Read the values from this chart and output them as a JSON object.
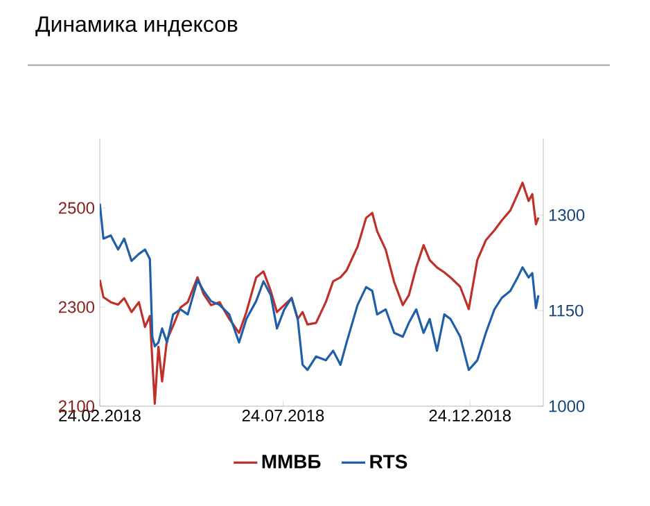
{
  "chart_data": {
    "type": "line",
    "title": "Динамика индексов",
    "xlim": [
      "2018-02-24",
      "2019-02-22"
    ],
    "xticks": [
      {
        "value": "2018-02-24",
        "label": "24.02.2018"
      },
      {
        "value": "2018-07-24",
        "label": "24.07.2018"
      },
      {
        "value": "2018-12-24",
        "label": "24.12.2018"
      }
    ],
    "ylim": [
      2100,
      2640
    ],
    "yticks": [
      2100,
      2300,
      2500
    ],
    "y2lim": [
      1000,
      1420
    ],
    "y2ticks": [
      1000,
      1150,
      1300
    ],
    "legend": "bottom",
    "series": [
      {
        "name": "ММВБ",
        "color": "#c0302a",
        "x": [
          "2018-02-24",
          "2018-02-27",
          "2018-03-05",
          "2018-03-11",
          "2018-03-16",
          "2018-03-22",
          "2018-03-28",
          "2018-04-02",
          "2018-04-06",
          "2018-04-08",
          "2018-04-10",
          "2018-04-13",
          "2018-04-16",
          "2018-04-20",
          "2018-04-25",
          "2018-05-01",
          "2018-05-07",
          "2018-05-15",
          "2018-05-20",
          "2018-05-26",
          "2018-06-02",
          "2018-06-10",
          "2018-06-18",
          "2018-06-24",
          "2018-07-02",
          "2018-07-08",
          "2018-07-14",
          "2018-07-19",
          "2018-07-25",
          "2018-07-31",
          "2018-08-05",
          "2018-08-09",
          "2018-08-13",
          "2018-08-20",
          "2018-08-28",
          "2018-09-03",
          "2018-09-09",
          "2018-09-14",
          "2018-09-23",
          "2018-09-30",
          "2018-10-05",
          "2018-10-09",
          "2018-10-16",
          "2018-10-23",
          "2018-10-30",
          "2018-11-04",
          "2018-11-10",
          "2018-11-16",
          "2018-11-21",
          "2018-11-27",
          "2018-12-03",
          "2018-12-08",
          "2018-12-16",
          "2018-12-23",
          "2018-12-30",
          "2019-01-06",
          "2019-01-13",
          "2019-01-19",
          "2019-01-26",
          "2019-02-01",
          "2019-02-05",
          "2019-02-10",
          "2019-02-13",
          "2019-02-16",
          "2019-02-18"
        ],
        "values": [
          2355,
          2320,
          2310,
          2305,
          2318,
          2290,
          2310,
          2260,
          2282,
          2192,
          2105,
          2220,
          2150,
          2234,
          2262,
          2299,
          2310,
          2360,
          2326,
          2304,
          2310,
          2276,
          2248,
          2290,
          2360,
          2372,
          2332,
          2290,
          2304,
          2318,
          2276,
          2290,
          2265,
          2268,
          2310,
          2352,
          2360,
          2374,
          2422,
          2480,
          2490,
          2453,
          2416,
          2350,
          2304,
          2324,
          2380,
          2425,
          2395,
          2380,
          2370,
          2360,
          2341,
          2296,
          2395,
          2435,
          2455,
          2475,
          2495,
          2528,
          2551,
          2514,
          2528,
          2467,
          2481
        ]
      },
      {
        "name": "RTS",
        "color": "#1f5fa8",
        "axis": "y2",
        "x": [
          "2018-02-24",
          "2018-02-27",
          "2018-03-05",
          "2018-03-11",
          "2018-03-16",
          "2018-03-22",
          "2018-03-28",
          "2018-04-02",
          "2018-04-06",
          "2018-04-08",
          "2018-04-10",
          "2018-04-13",
          "2018-04-16",
          "2018-04-20",
          "2018-04-25",
          "2018-05-01",
          "2018-05-07",
          "2018-05-15",
          "2018-05-20",
          "2018-05-26",
          "2018-06-02",
          "2018-06-10",
          "2018-06-18",
          "2018-06-24",
          "2018-07-02",
          "2018-07-08",
          "2018-07-14",
          "2018-07-19",
          "2018-07-25",
          "2018-07-31",
          "2018-08-05",
          "2018-08-09",
          "2018-08-13",
          "2018-08-20",
          "2018-08-28",
          "2018-09-03",
          "2018-09-09",
          "2018-09-14",
          "2018-09-23",
          "2018-09-30",
          "2018-10-05",
          "2018-10-09",
          "2018-10-16",
          "2018-10-23",
          "2018-10-30",
          "2018-11-04",
          "2018-11-10",
          "2018-11-16",
          "2018-11-21",
          "2018-11-27",
          "2018-12-03",
          "2018-12-08",
          "2018-12-16",
          "2018-12-23",
          "2018-12-30",
          "2019-01-06",
          "2019-01-13",
          "2019-01-19",
          "2019-01-26",
          "2019-02-01",
          "2019-02-05",
          "2019-02-10",
          "2019-02-13",
          "2019-02-16",
          "2019-02-18"
        ],
        "values": [
          1318,
          1263,
          1268,
          1246,
          1263,
          1228,
          1239,
          1246,
          1231,
          1109,
          1094,
          1100,
          1122,
          1100,
          1144,
          1152,
          1144,
          1198,
          1181,
          1165,
          1159,
          1144,
          1100,
          1137,
          1165,
          1196,
          1174,
          1122,
          1152,
          1170,
          1137,
          1065,
          1057,
          1078,
          1072,
          1087,
          1065,
          1100,
          1159,
          1187,
          1181,
          1144,
          1152,
          1115,
          1109,
          1131,
          1152,
          1115,
          1137,
          1087,
          1144,
          1137,
          1109,
          1057,
          1072,
          1115,
          1152,
          1170,
          1181,
          1202,
          1218,
          1202,
          1209,
          1154,
          1174
        ]
      }
    ]
  }
}
